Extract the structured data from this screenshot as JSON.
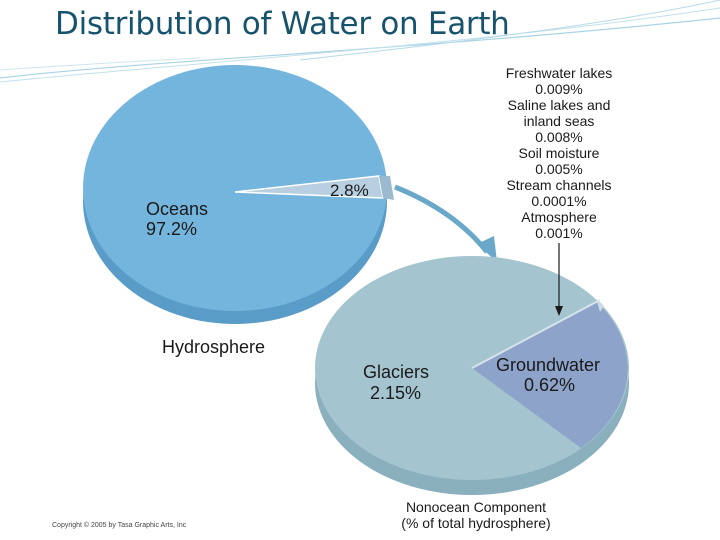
{
  "slide": {
    "title": "Distribution of Water on Earth",
    "copyright": "Copyright © 2005 by Tasa Graphic Arts, Inc"
  },
  "colors": {
    "title": "#17536c",
    "oceans": "#74b5de",
    "oceans_side": "#5a9cc8",
    "glaciers": "#a4c4d0",
    "glaciers_side": "#8aafbd",
    "groundwater": "#8da3ca",
    "groundwater_side": "#7187b2",
    "slice": "#b7cfe0"
  },
  "chart_data": [
    {
      "type": "pie",
      "title": "Hydrosphere",
      "slices": [
        {
          "label": "Oceans",
          "value_label": "97.2%",
          "value": 97.2
        },
        {
          "label": "",
          "value_label": "2.8%",
          "value": 2.8
        }
      ]
    },
    {
      "type": "pie",
      "title": "Nonocean Component",
      "subtitle": "(% of total hydrosphere)",
      "slices": [
        {
          "label": "Glaciers",
          "value_label": "2.15%",
          "value": 2.15
        },
        {
          "label": "Groundwater",
          "value_label": "0.62%",
          "value": 0.62
        },
        {
          "label": "Freshwater lakes",
          "value_label": "0.009%",
          "value": 0.009
        },
        {
          "label": "Saline lakes and inland seas",
          "value_label": "0.008%",
          "value": 0.008
        },
        {
          "label": "Soil moisture",
          "value_label": "0.005%",
          "value": 0.005
        },
        {
          "label": "Stream channels",
          "value_label": "0.0001%",
          "value": 0.0001
        },
        {
          "label": "Atmosphere",
          "value_label": "0.001%",
          "value": 0.001
        }
      ],
      "minor_labels": [
        {
          "lines": [
            "Freshwater lakes",
            "0.009%"
          ]
        },
        {
          "lines": [
            "Saline lakes and",
            "inland seas",
            "0.008%"
          ]
        },
        {
          "lines": [
            "Soil moisture",
            "0.005%"
          ]
        },
        {
          "lines": [
            "Stream channels",
            "0.0001%"
          ]
        },
        {
          "lines": [
            "Atmosphere",
            "0.001%"
          ]
        }
      ]
    }
  ]
}
